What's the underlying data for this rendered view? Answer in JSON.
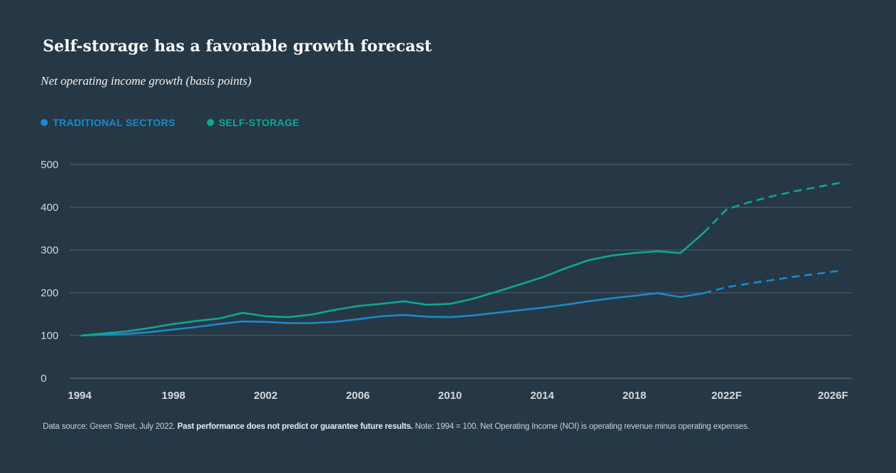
{
  "colors": {
    "background": "#263746",
    "traditional": "#1b8ac6",
    "self_storage": "#11a596",
    "grid": "#50606e",
    "tick": "#d3d9de"
  },
  "chart_data": {
    "type": "line",
    "title": "Self-storage has a favorable growth forecast",
    "subtitle": "Net operating income growth (basis points)",
    "xlabel": "",
    "ylabel": "",
    "ylim": [
      0,
      500
    ],
    "xlim": [
      1994,
      2027
    ],
    "y_ticks": [
      0,
      100,
      200,
      300,
      400,
      500
    ],
    "x_ticks": [
      {
        "value": 1994,
        "label": "1994"
      },
      {
        "value": 1998,
        "label": "1998"
      },
      {
        "value": 2002,
        "label": "2002"
      },
      {
        "value": 2006,
        "label": "2006"
      },
      {
        "value": 2010,
        "label": "2010"
      },
      {
        "value": 2014,
        "label": "2014"
      },
      {
        "value": 2018,
        "label": "2018"
      },
      {
        "value": 2022,
        "label": "2022F"
      },
      {
        "value": 2026,
        "label": "2026F"
      }
    ],
    "legend_position": "top-left",
    "series": [
      {
        "name": "TRADITIONAL SECTORS",
        "color": "#1b8ac6",
        "actual": [
          [
            1994,
            100
          ],
          [
            1995,
            102
          ],
          [
            1996,
            104
          ],
          [
            1997,
            108
          ],
          [
            1998,
            114
          ],
          [
            1999,
            120
          ],
          [
            2000,
            127
          ],
          [
            2001,
            133
          ],
          [
            2002,
            132
          ],
          [
            2003,
            129
          ],
          [
            2004,
            129
          ],
          [
            2005,
            132
          ],
          [
            2006,
            138
          ],
          [
            2007,
            145
          ],
          [
            2008,
            148
          ],
          [
            2009,
            144
          ],
          [
            2010,
            143
          ],
          [
            2011,
            147
          ],
          [
            2012,
            153
          ],
          [
            2013,
            159
          ],
          [
            2014,
            165
          ],
          [
            2015,
            172
          ],
          [
            2016,
            180
          ],
          [
            2017,
            187
          ],
          [
            2018,
            193
          ],
          [
            2019,
            199
          ],
          [
            2020,
            190
          ],
          [
            2021,
            199
          ]
        ],
        "forecast": [
          [
            2021,
            199
          ],
          [
            2022,
            213
          ],
          [
            2023,
            222
          ],
          [
            2024,
            230
          ],
          [
            2025,
            238
          ],
          [
            2026,
            245
          ],
          [
            2027,
            252
          ]
        ]
      },
      {
        "name": "SELF-STORAGE",
        "color": "#11a596",
        "actual": [
          [
            1994,
            100
          ],
          [
            1995,
            105
          ],
          [
            1996,
            110
          ],
          [
            1997,
            118
          ],
          [
            1998,
            127
          ],
          [
            1999,
            134
          ],
          [
            2000,
            140
          ],
          [
            2001,
            153
          ],
          [
            2002,
            145
          ],
          [
            2003,
            143
          ],
          [
            2004,
            149
          ],
          [
            2005,
            160
          ],
          [
            2006,
            169
          ],
          [
            2007,
            174
          ],
          [
            2008,
            180
          ],
          [
            2009,
            172
          ],
          [
            2010,
            174
          ],
          [
            2011,
            186
          ],
          [
            2012,
            202
          ],
          [
            2013,
            219
          ],
          [
            2014,
            236
          ],
          [
            2015,
            257
          ],
          [
            2016,
            276
          ],
          [
            2017,
            287
          ],
          [
            2018,
            293
          ],
          [
            2019,
            297
          ],
          [
            2020,
            293
          ],
          [
            2021,
            340
          ]
        ],
        "forecast": [
          [
            2021,
            340
          ],
          [
            2022,
            395
          ],
          [
            2023,
            412
          ],
          [
            2024,
            426
          ],
          [
            2025,
            438
          ],
          [
            2026,
            448
          ],
          [
            2027,
            458
          ]
        ]
      }
    ]
  },
  "footnote": {
    "source": "Data source: Green Street, July 2022.",
    "disclaimer": "Past performance does not predict or guarantee future results.",
    "note": "Note: 1994 = 100. Net Operating Income (NOI) is operating revenue minus operating expenses."
  }
}
